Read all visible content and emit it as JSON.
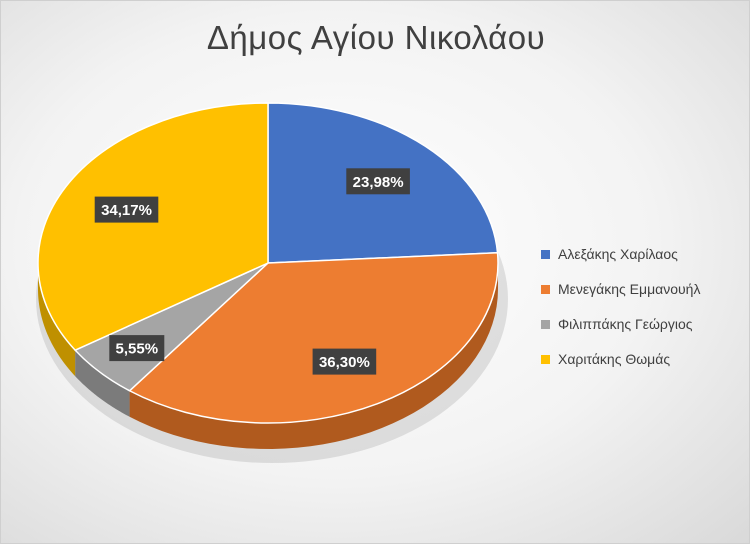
{
  "chart_data": {
    "type": "pie",
    "title": "Δήμος Αγίου Νικολάου",
    "categories": [
      "Αλεξάκης Χαρίλαος",
      "Μενεγάκης Εμμανουήλ",
      "Φιλιππάκης Γεώργιος",
      "Χαριτάκης Θωμάς"
    ],
    "values": [
      23.98,
      36.3,
      5.55,
      34.17
    ],
    "data_labels": [
      "23,98%",
      "36,30%",
      "5,55%",
      "34,17%"
    ],
    "colors": [
      "#4472C4",
      "#ED7D31",
      "#A5A5A5",
      "#FFC000"
    ],
    "side_colors": [
      "#2F5597",
      "#B05A1E",
      "#7B7B7B",
      "#BF9000"
    ],
    "legend_position": "right",
    "style": "3d-pie"
  }
}
